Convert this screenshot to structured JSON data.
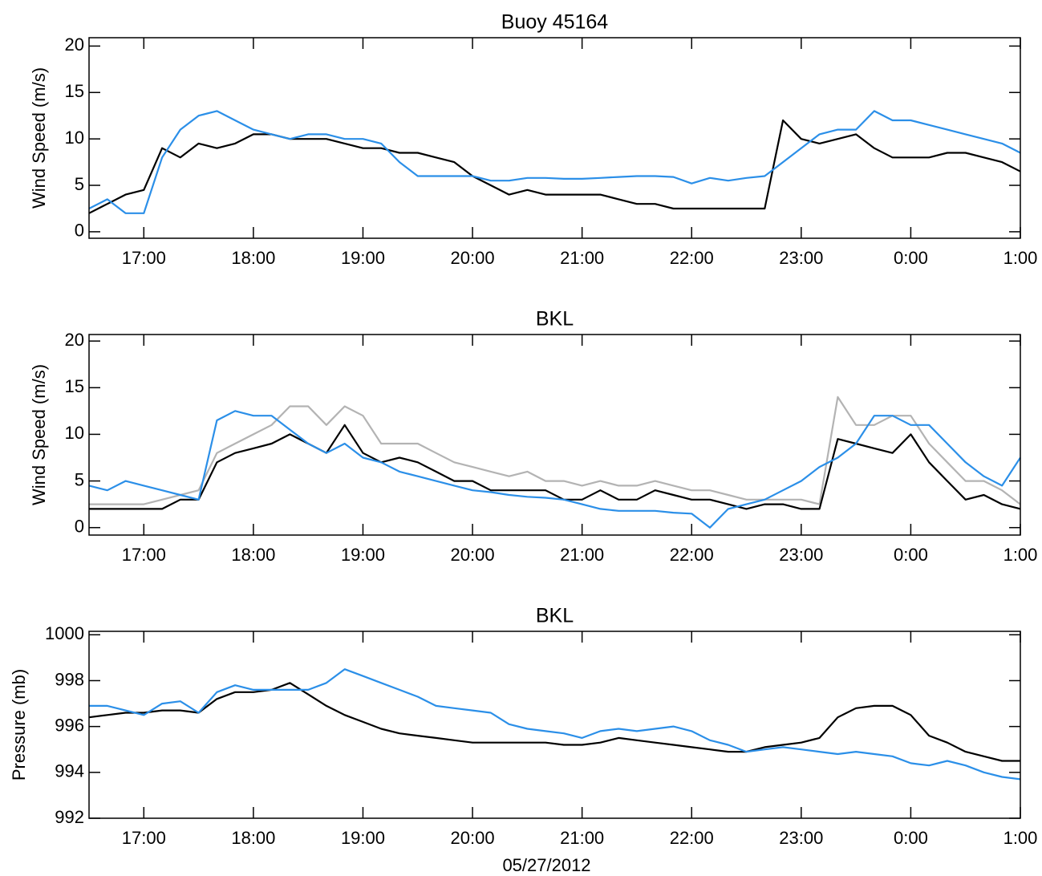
{
  "chart_data": [
    {
      "type": "line",
      "title": "Buoy 45164",
      "ylabel": "Wind Speed (m/s)",
      "x": [
        990,
        1000,
        1010,
        1020,
        1030,
        1040,
        1050,
        1060,
        1070,
        1080,
        1090,
        1100,
        1110,
        1120,
        1130,
        1140,
        1150,
        1160,
        1170,
        1180,
        1190,
        1200,
        1210,
        1220,
        1230,
        1240,
        1250,
        1260,
        1270,
        1280,
        1290,
        1300,
        1310,
        1320,
        1330,
        1340,
        1350,
        1360,
        1370,
        1380,
        1390,
        1400,
        1410,
        1420,
        1430,
        1440,
        1450,
        1460,
        1470,
        1480,
        1490,
        1500
      ],
      "xlim": [
        990,
        1500
      ],
      "xticks": [
        {
          "value": 1020,
          "label": "17:00"
        },
        {
          "value": 1080,
          "label": "18:00"
        },
        {
          "value": 1140,
          "label": "19:00"
        },
        {
          "value": 1200,
          "label": "20:00"
        },
        {
          "value": 1260,
          "label": "21:00"
        },
        {
          "value": 1320,
          "label": "22:00"
        },
        {
          "value": 1380,
          "label": "23:00"
        },
        {
          "value": 1440,
          "label": "0:00"
        },
        {
          "value": 1500,
          "label": "1:00"
        }
      ],
      "ylim": [
        -0.7,
        20.9
      ],
      "yticks": [
        0,
        5,
        10,
        15,
        20
      ],
      "series": [
        {
          "color": "#000000",
          "values": [
            2,
            3,
            4,
            4.5,
            9,
            8,
            9.5,
            9,
            9.5,
            10.5,
            10.5,
            10,
            10,
            10,
            9.5,
            9,
            9,
            8.5,
            8.5,
            8,
            7.5,
            6,
            5,
            4,
            4.5,
            4,
            4,
            4,
            4,
            3.5,
            3,
            3,
            2.5,
            2.5,
            2.5,
            2.5,
            2.5,
            2.5,
            12,
            10,
            9.5,
            10,
            10.5,
            9,
            8,
            8,
            8,
            8.5,
            8.5,
            8,
            7.5,
            6.5
          ]
        },
        {
          "color": "#2b8fe8",
          "values": [
            2.5,
            3.5,
            2,
            2,
            8,
            11,
            12.5,
            13,
            12,
            11,
            10.5,
            10,
            10.5,
            10.5,
            10,
            10,
            9.5,
            7.5,
            6,
            6,
            6,
            6,
            5.5,
            5.5,
            5.8,
            5.8,
            5.7,
            5.7,
            5.8,
            5.9,
            6,
            6,
            5.9,
            5.2,
            5.8,
            5.5,
            5.8,
            6,
            7.5,
            9,
            10.5,
            11,
            11,
            13,
            12,
            12,
            11.5,
            11,
            10.5,
            10,
            9.5,
            8.5
          ]
        }
      ]
    },
    {
      "type": "line",
      "title": "BKL",
      "ylabel": "Wind Speed (m/s)",
      "x": [
        990,
        1000,
        1010,
        1020,
        1030,
        1040,
        1050,
        1060,
        1070,
        1080,
        1090,
        1100,
        1110,
        1120,
        1130,
        1140,
        1150,
        1160,
        1170,
        1180,
        1190,
        1200,
        1210,
        1220,
        1230,
        1240,
        1250,
        1260,
        1270,
        1280,
        1290,
        1300,
        1310,
        1320,
        1330,
        1340,
        1350,
        1360,
        1370,
        1380,
        1390,
        1400,
        1410,
        1420,
        1430,
        1440,
        1450,
        1460,
        1470,
        1480,
        1490,
        1500
      ],
      "xlim": [
        990,
        1500
      ],
      "xticks": [
        {
          "value": 1020,
          "label": "17:00"
        },
        {
          "value": 1080,
          "label": "18:00"
        },
        {
          "value": 1140,
          "label": "19:00"
        },
        {
          "value": 1200,
          "label": "20:00"
        },
        {
          "value": 1260,
          "label": "21:00"
        },
        {
          "value": 1320,
          "label": "22:00"
        },
        {
          "value": 1380,
          "label": "23:00"
        },
        {
          "value": 1440,
          "label": "0:00"
        },
        {
          "value": 1500,
          "label": "1:00"
        }
      ],
      "ylim": [
        -0.8,
        20.7
      ],
      "yticks": [
        0,
        5,
        10,
        15,
        20
      ],
      "series": [
        {
          "color": "#b3b3b3",
          "values": [
            2.5,
            2.5,
            2.5,
            2.5,
            3,
            3.5,
            4,
            8,
            9,
            10,
            11,
            13,
            13,
            11,
            13,
            12,
            9,
            9,
            9,
            8,
            7,
            6.5,
            6,
            5.5,
            6,
            5,
            5,
            4.5,
            5,
            4.5,
            4.5,
            5,
            4.5,
            4,
            4,
            3.5,
            3,
            3,
            3,
            3,
            2.5,
            14,
            11,
            11,
            12,
            12,
            9,
            7,
            5,
            5,
            4,
            2.5
          ]
        },
        {
          "color": "#000000",
          "values": [
            2,
            2,
            2,
            2,
            2,
            3,
            3,
            7,
            8,
            8.5,
            9,
            10,
            9,
            8,
            11,
            8,
            7,
            7.5,
            7,
            6,
            5,
            5,
            4,
            4,
            4,
            4,
            3,
            3,
            4,
            3,
            3,
            4,
            3.5,
            3,
            3,
            2.5,
            2,
            2.5,
            2.5,
            2,
            2,
            9.5,
            9,
            8.5,
            8,
            10,
            7,
            5,
            3,
            3.5,
            2.5,
            2
          ]
        },
        {
          "color": "#2b8fe8",
          "values": [
            4.5,
            4,
            5,
            4.5,
            4,
            3.5,
            3,
            11.5,
            12.5,
            12,
            12,
            10.5,
            9,
            8,
            9,
            7.5,
            7,
            6,
            5.5,
            5,
            4.5,
            4,
            3.8,
            3.5,
            3.3,
            3.2,
            3,
            2.5,
            2,
            1.8,
            1.8,
            1.8,
            1.6,
            1.5,
            0,
            2,
            2.5,
            3,
            4,
            5,
            6.5,
            7.5,
            9,
            12,
            12,
            11,
            11,
            9,
            7,
            5.5,
            4.5,
            7.5
          ]
        }
      ]
    },
    {
      "type": "line",
      "title": "BKL",
      "ylabel": "Pressure (mb)",
      "xlabel": "05/27/2012",
      "x": [
        990,
        1000,
        1010,
        1020,
        1030,
        1040,
        1050,
        1060,
        1070,
        1080,
        1090,
        1100,
        1110,
        1120,
        1130,
        1140,
        1150,
        1160,
        1170,
        1180,
        1190,
        1200,
        1210,
        1220,
        1230,
        1240,
        1250,
        1260,
        1270,
        1280,
        1290,
        1300,
        1310,
        1320,
        1330,
        1340,
        1350,
        1360,
        1370,
        1380,
        1390,
        1400,
        1410,
        1420,
        1430,
        1440,
        1450,
        1460,
        1470,
        1480,
        1490,
        1500
      ],
      "xlim": [
        990,
        1500
      ],
      "xticks": [
        {
          "value": 1020,
          "label": "17:00"
        },
        {
          "value": 1080,
          "label": "18:00"
        },
        {
          "value": 1140,
          "label": "19:00"
        },
        {
          "value": 1200,
          "label": "20:00"
        },
        {
          "value": 1260,
          "label": "21:00"
        },
        {
          "value": 1320,
          "label": "22:00"
        },
        {
          "value": 1380,
          "label": "23:00"
        },
        {
          "value": 1440,
          "label": "0:00"
        },
        {
          "value": 1500,
          "label": "1:00"
        }
      ],
      "ylim": [
        992,
        1000.15
      ],
      "yticks": [
        992,
        994,
        996,
        998,
        1000
      ],
      "series": [
        {
          "color": "#000000",
          "values": [
            996.4,
            996.5,
            996.6,
            996.6,
            996.7,
            996.7,
            996.6,
            997.2,
            997.5,
            997.5,
            997.6,
            997.9,
            997.4,
            996.9,
            996.5,
            996.2,
            995.9,
            995.7,
            995.6,
            995.5,
            995.4,
            995.3,
            995.3,
            995.3,
            995.3,
            995.3,
            995.2,
            995.2,
            995.3,
            995.5,
            995.4,
            995.3,
            995.2,
            995.1,
            995,
            994.9,
            994.9,
            995.1,
            995.2,
            995.3,
            995.5,
            996.4,
            996.8,
            996.9,
            996.9,
            996.5,
            995.6,
            995.3,
            994.9,
            994.7,
            994.5,
            994.5
          ]
        },
        {
          "color": "#2b8fe8",
          "values": [
            996.9,
            996.9,
            996.7,
            996.5,
            997,
            997.1,
            996.6,
            997.5,
            997.8,
            997.6,
            997.6,
            997.6,
            997.6,
            997.9,
            998.5,
            998.2,
            997.9,
            997.6,
            997.3,
            996.9,
            996.8,
            996.7,
            996.6,
            996.1,
            995.9,
            995.8,
            995.7,
            995.5,
            995.8,
            995.9,
            995.8,
            995.9,
            996,
            995.8,
            995.4,
            995.2,
            994.9,
            995,
            995.1,
            995,
            994.9,
            994.8,
            994.9,
            994.8,
            994.7,
            994.4,
            994.3,
            994.5,
            994.3,
            994,
            993.8,
            993.7
          ]
        }
      ]
    }
  ]
}
